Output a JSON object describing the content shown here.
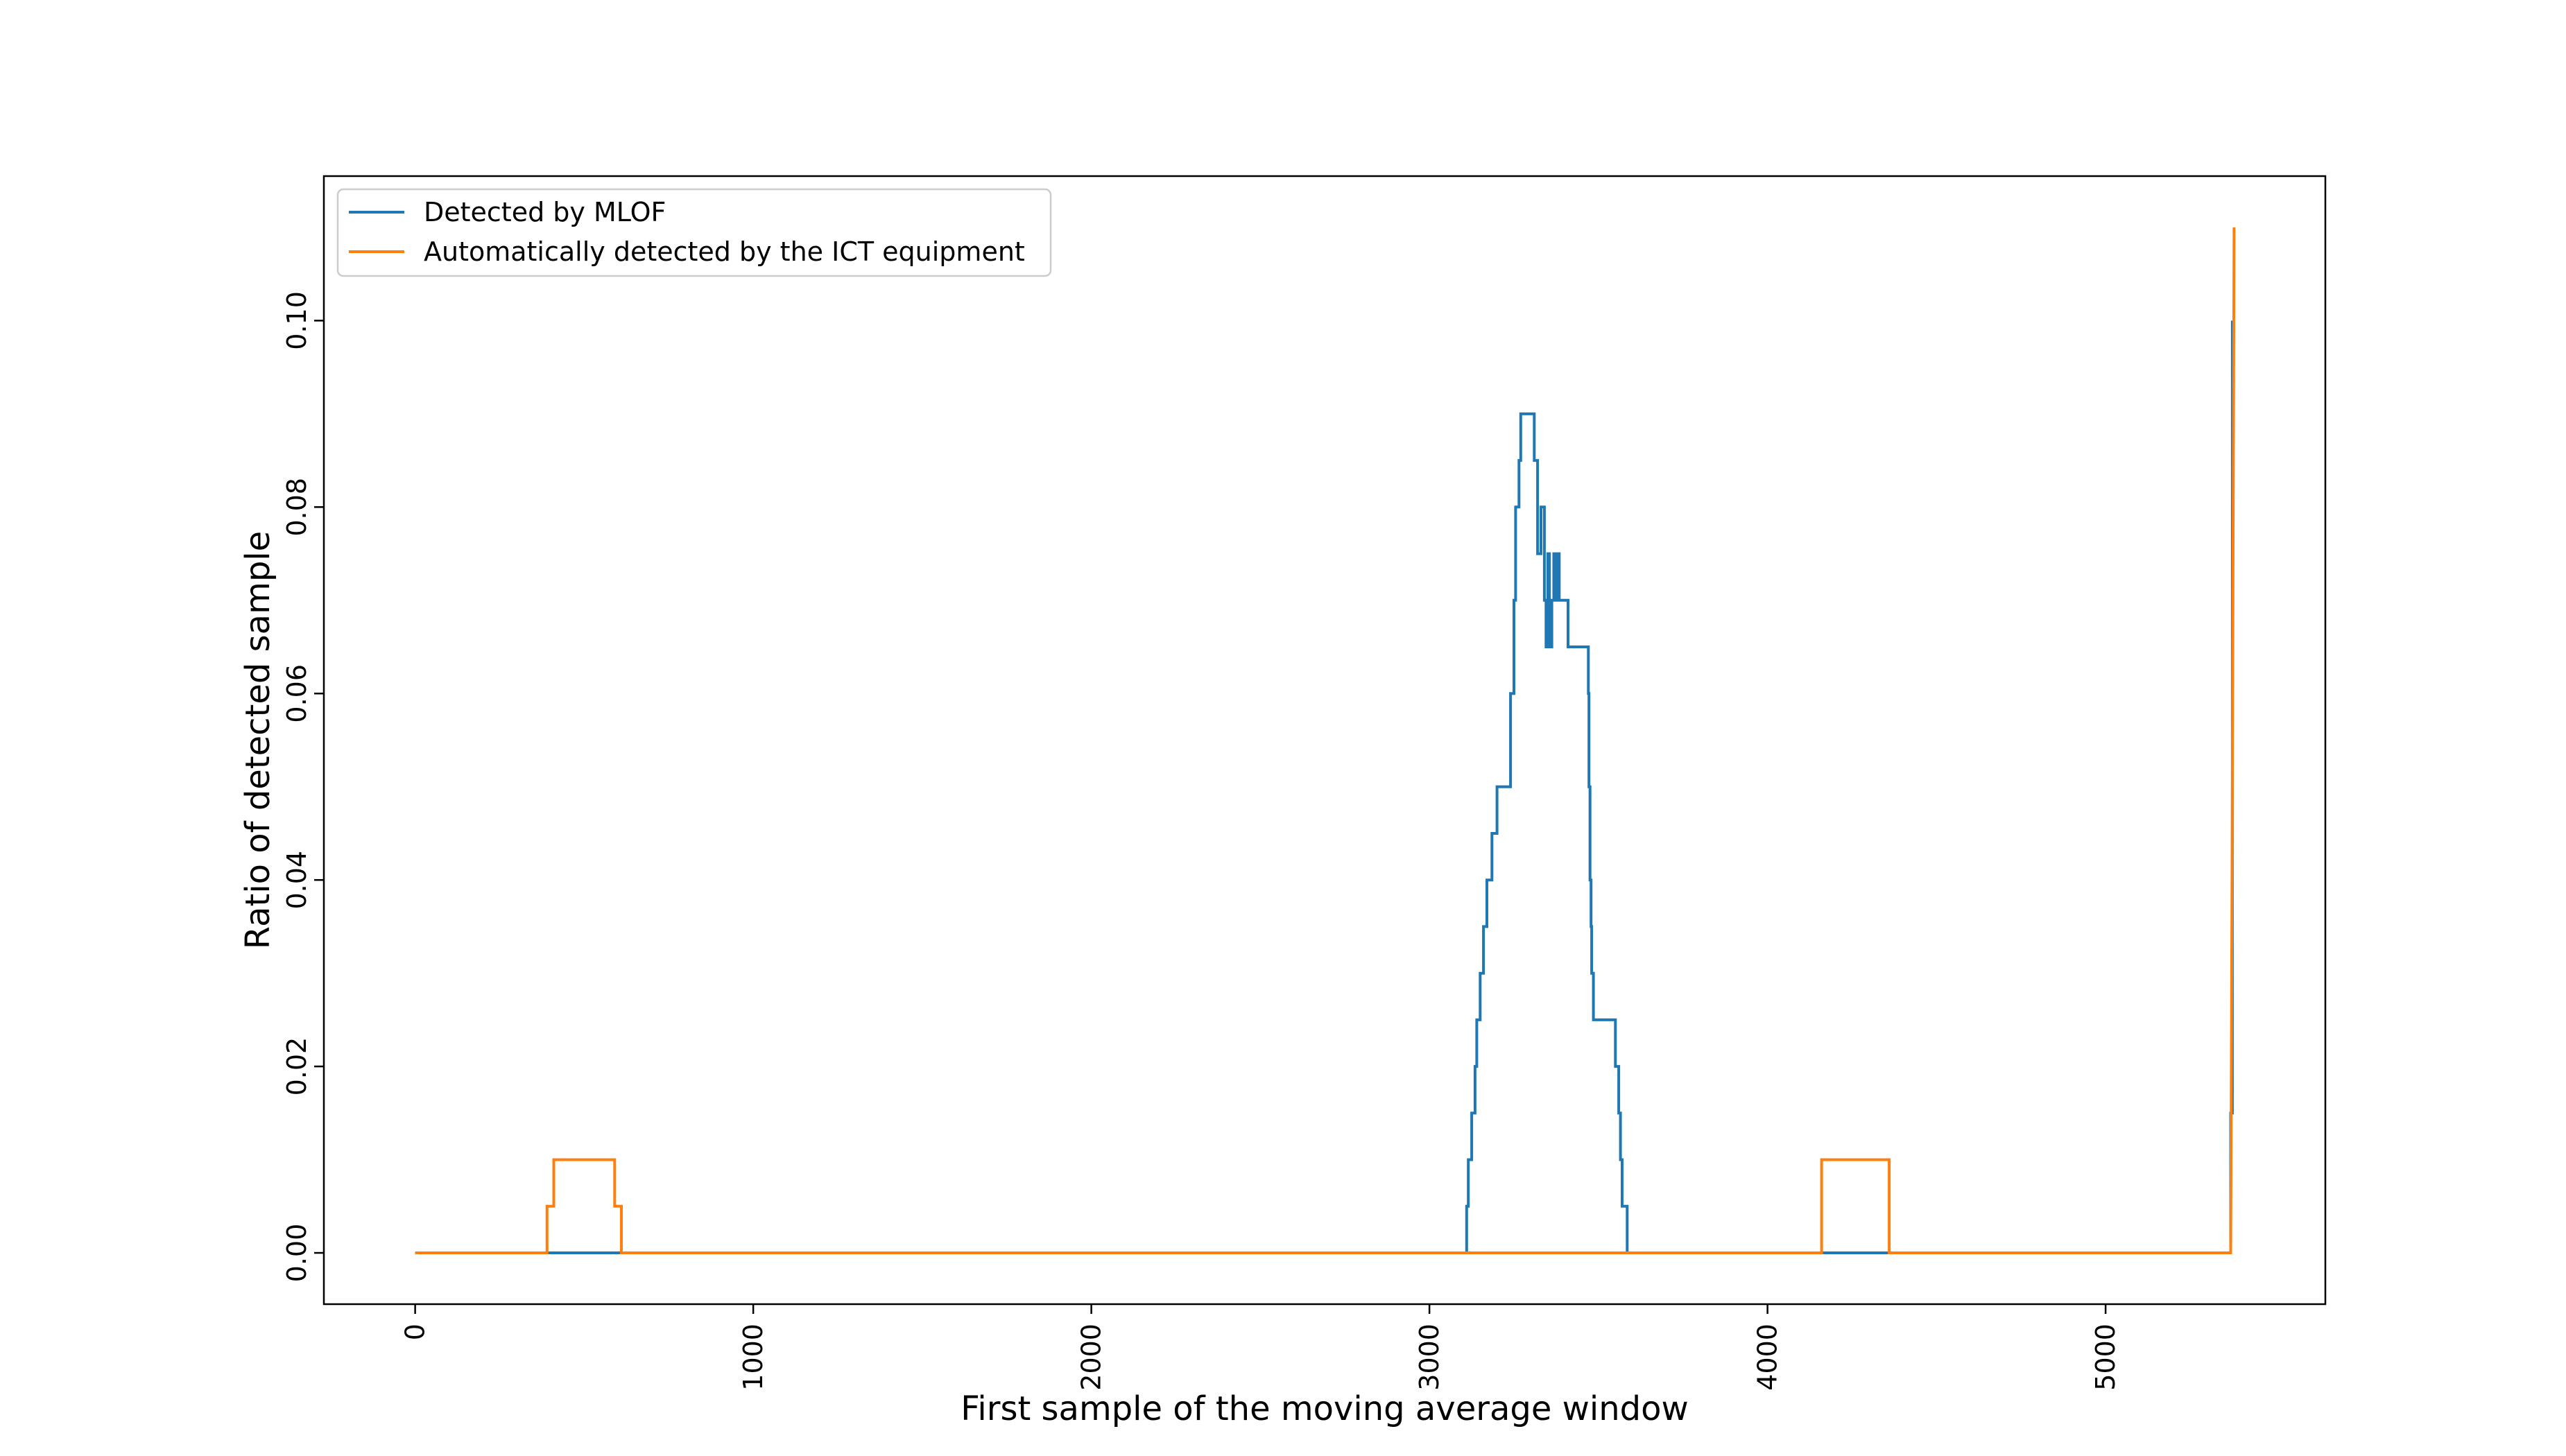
{
  "chart_data": {
    "type": "line",
    "title": "",
    "xlabel": "First sample of the moving average window",
    "ylabel": "Ratio of detected sample",
    "xlim": [
      -270,
      5650
    ],
    "ylim": [
      -0.0055,
      0.1155
    ],
    "xticks": [
      0,
      1000,
      2000,
      3000,
      4000,
      5000
    ],
    "xtick_labels": [
      "0",
      "1000",
      "2000",
      "3000",
      "4000",
      "5000"
    ],
    "yticks": [
      0.0,
      0.02,
      0.04,
      0.06,
      0.08,
      0.1
    ],
    "ytick_labels": [
      "0.00",
      "0.02",
      "0.04",
      "0.06",
      "0.08",
      "0.10"
    ],
    "grid": false,
    "legend_position": "top-left",
    "series": [
      {
        "name": "Detected by MLOF",
        "color": "#1f77b4",
        "points": [
          [
            0,
            0
          ],
          [
            3110,
            0
          ],
          [
            3110,
            0.005
          ],
          [
            3115,
            0.005
          ],
          [
            3115,
            0.01
          ],
          [
            3125,
            0.01
          ],
          [
            3125,
            0.015
          ],
          [
            3135,
            0.015
          ],
          [
            3135,
            0.02
          ],
          [
            3140,
            0.02
          ],
          [
            3140,
            0.025
          ],
          [
            3150,
            0.025
          ],
          [
            3150,
            0.03
          ],
          [
            3160,
            0.03
          ],
          [
            3160,
            0.035
          ],
          [
            3170,
            0.035
          ],
          [
            3170,
            0.04
          ],
          [
            3185,
            0.04
          ],
          [
            3185,
            0.045
          ],
          [
            3200,
            0.045
          ],
          [
            3200,
            0.05
          ],
          [
            3240,
            0.05
          ],
          [
            3240,
            0.06
          ],
          [
            3250,
            0.06
          ],
          [
            3250,
            0.07
          ],
          [
            3255,
            0.07
          ],
          [
            3255,
            0.08
          ],
          [
            3265,
            0.08
          ],
          [
            3265,
            0.085
          ],
          [
            3270,
            0.085
          ],
          [
            3270,
            0.09
          ],
          [
            3310,
            0.09
          ],
          [
            3310,
            0.085
          ],
          [
            3320,
            0.085
          ],
          [
            3320,
            0.075
          ],
          [
            3330,
            0.075
          ],
          [
            3330,
            0.08
          ],
          [
            3340,
            0.08
          ],
          [
            3340,
            0.07
          ],
          [
            3345,
            0.07
          ],
          [
            3345,
            0.065
          ],
          [
            3350,
            0.065
          ],
          [
            3350,
            0.075
          ],
          [
            3355,
            0.075
          ],
          [
            3355,
            0.065
          ],
          [
            3362,
            0.065
          ],
          [
            3362,
            0.07
          ],
          [
            3368,
            0.07
          ],
          [
            3368,
            0.075
          ],
          [
            3372,
            0.075
          ],
          [
            3372,
            0.07
          ],
          [
            3378,
            0.07
          ],
          [
            3378,
            0.075
          ],
          [
            3384,
            0.075
          ],
          [
            3384,
            0.07
          ],
          [
            3410,
            0.07
          ],
          [
            3410,
            0.065
          ],
          [
            3470,
            0.065
          ],
          [
            3470,
            0.06
          ],
          [
            3472,
            0.06
          ],
          [
            3472,
            0.05
          ],
          [
            3475,
            0.05
          ],
          [
            3475,
            0.04
          ],
          [
            3478,
            0.04
          ],
          [
            3478,
            0.035
          ],
          [
            3480,
            0.035
          ],
          [
            3480,
            0.03
          ],
          [
            3485,
            0.03
          ],
          [
            3485,
            0.025
          ],
          [
            3550,
            0.025
          ],
          [
            3550,
            0.02
          ],
          [
            3560,
            0.02
          ],
          [
            3560,
            0.015
          ],
          [
            3565,
            0.015
          ],
          [
            3565,
            0.01
          ],
          [
            3570,
            0.01
          ],
          [
            3570,
            0.005
          ],
          [
            3585,
            0.005
          ],
          [
            3585,
            0
          ],
          [
            5370,
            0
          ],
          [
            5370,
            0.015
          ],
          [
            5375,
            0.015
          ],
          [
            5375,
            0.1
          ]
        ]
      },
      {
        "name": "Automatically detected by the ICT equipment",
        "color": "#ff7f0e",
        "points": [
          [
            0,
            0
          ],
          [
            390,
            0
          ],
          [
            390,
            0.005
          ],
          [
            410,
            0.005
          ],
          [
            410,
            0.01
          ],
          [
            590,
            0.01
          ],
          [
            590,
            0.005
          ],
          [
            610,
            0.005
          ],
          [
            610,
            0
          ],
          [
            4160,
            0
          ],
          [
            4160,
            0.01
          ],
          [
            4360,
            0.01
          ],
          [
            4360,
            0
          ],
          [
            5370,
            0
          ],
          [
            5375,
            0.05
          ],
          [
            5380,
            0.11
          ]
        ]
      }
    ]
  }
}
